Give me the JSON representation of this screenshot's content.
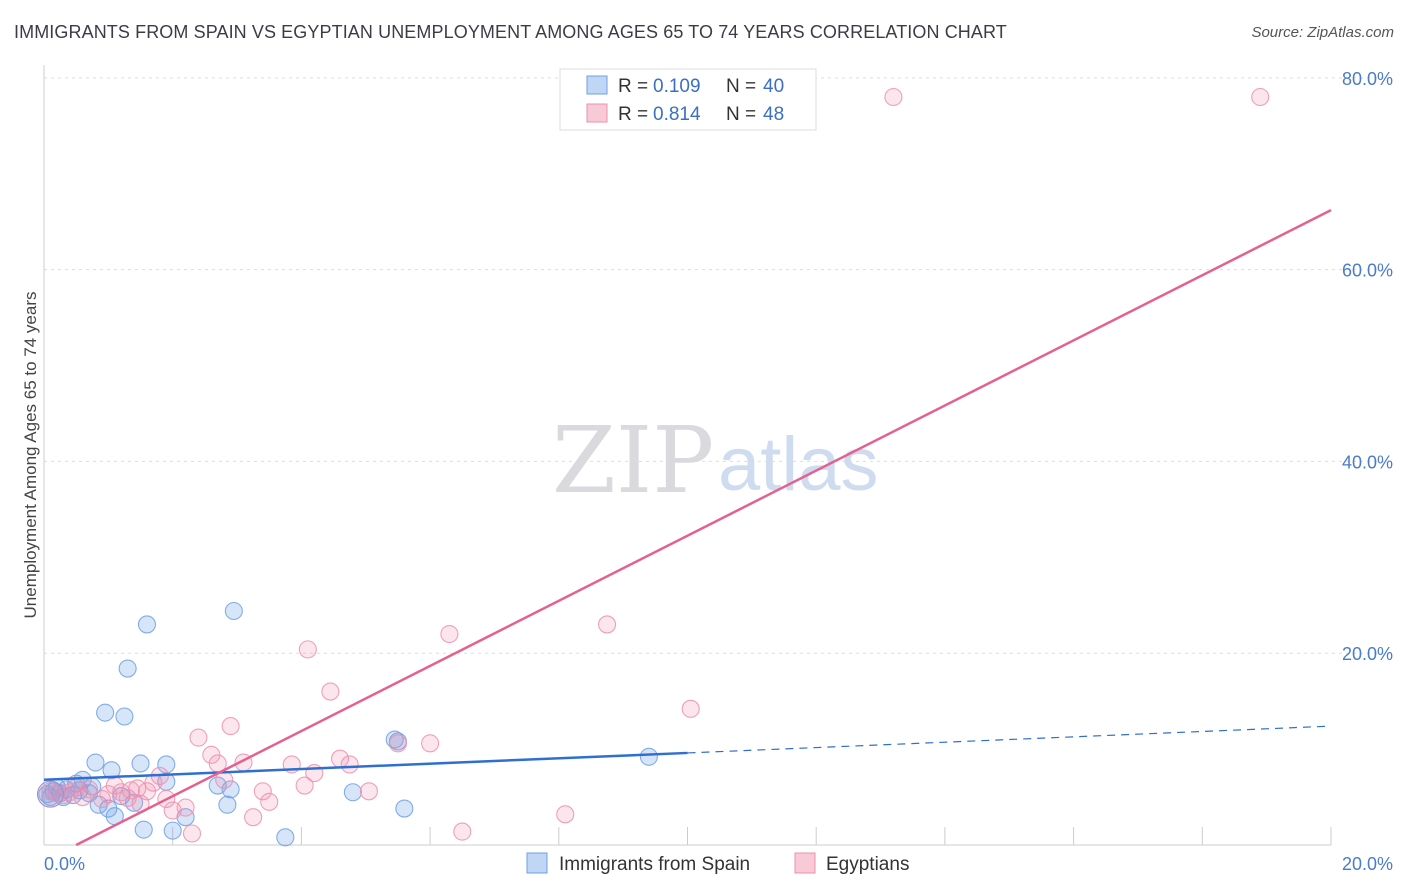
{
  "header": {
    "title": "IMMIGRANTS FROM SPAIN VS EGYPTIAN UNEMPLOYMENT AMONG AGES 65 TO 74 YEARS CORRELATION CHART",
    "source": "Source: ZipAtlas.com"
  },
  "watermark": {
    "zip": "ZIP",
    "atlas": "atlas"
  },
  "legend": {
    "rows": [
      {
        "r_label": "R =",
        "r_value": "0.109",
        "n_label": "N =",
        "n_value": "40",
        "color": "#a9c8f2"
      },
      {
        "r_label": "R =",
        "r_value": "0.814",
        "n_label": "N =",
        "n_value": "48",
        "color": "#f6b8cb"
      }
    ]
  },
  "bottom_legend": {
    "items": [
      {
        "label": "Immigrants from Spain",
        "color": "#a9c8f2"
      },
      {
        "label": "Egyptians",
        "color": "#f6b8cb"
      }
    ]
  },
  "chart_data": {
    "type": "scatter",
    "title": "IMMIGRANTS FROM SPAIN VS EGYPTIAN UNEMPLOYMENT AMONG AGES 65 TO 74 YEARS CORRELATION CHART",
    "xlabel": "",
    "ylabel": "Unemployment Among Ages 65 to 74 years",
    "xlim": [
      0,
      20
    ],
    "ylim": [
      0,
      80
    ],
    "x_tick_labels": [
      "0.0%",
      "20.0%"
    ],
    "y_ticks": [
      20,
      40,
      60,
      80
    ],
    "y_tick_labels": [
      "20.0%",
      "40.0%",
      "60.0%",
      "80.0%"
    ],
    "grid": true,
    "series": [
      {
        "name": "Immigrants from Spain",
        "color": "#6fa0e6",
        "line_color": "#2f6fd1",
        "points": [
          [
            0.1,
            5.0
          ],
          [
            0.15,
            5.6
          ],
          [
            0.25,
            5.4
          ],
          [
            0.35,
            5.8
          ],
          [
            0.45,
            5.2
          ],
          [
            0.5,
            6.4
          ],
          [
            0.6,
            6.8
          ],
          [
            0.7,
            5.4
          ],
          [
            0.75,
            6.1
          ],
          [
            0.8,
            8.6
          ],
          [
            0.85,
            4.2
          ],
          [
            0.95,
            13.8
          ],
          [
            1.0,
            3.8
          ],
          [
            1.05,
            7.8
          ],
          [
            1.1,
            3.0
          ],
          [
            1.25,
            13.4
          ],
          [
            1.3,
            18.4
          ],
          [
            1.4,
            4.4
          ],
          [
            1.5,
            8.5
          ],
          [
            1.55,
            1.6
          ],
          [
            1.6,
            23.0
          ],
          [
            1.9,
            6.6
          ],
          [
            1.9,
            8.4
          ],
          [
            2.0,
            1.5
          ],
          [
            2.2,
            2.9
          ],
          [
            2.7,
            6.2
          ],
          [
            2.85,
            4.2
          ],
          [
            2.9,
            5.8
          ],
          [
            2.95,
            24.4
          ],
          [
            3.75,
            0.8
          ],
          [
            4.8,
            5.5
          ],
          [
            5.45,
            11.0
          ],
          [
            5.5,
            10.8
          ],
          [
            5.6,
            3.8
          ],
          [
            9.4,
            9.2
          ],
          [
            0.05,
            5.3
          ],
          [
            0.3,
            5.0
          ],
          [
            0.55,
            5.7
          ],
          [
            1.2,
            5.1
          ],
          [
            0.2,
            6.0
          ]
        ],
        "trend": {
          "x_start": 0,
          "y_start": 6.8,
          "x_solid_end": 10,
          "y_solid_end": 9.6,
          "x_end": 20,
          "y_end": 12.4
        }
      },
      {
        "name": "Egyptians",
        "color": "#f08fae",
        "line_color": "#e5608f",
        "points": [
          [
            0.1,
            5.6
          ],
          [
            0.3,
            5.2
          ],
          [
            0.5,
            6.0
          ],
          [
            0.7,
            5.8
          ],
          [
            0.9,
            4.8
          ],
          [
            1.1,
            6.2
          ],
          [
            1.2,
            5.5
          ],
          [
            1.3,
            4.9
          ],
          [
            1.45,
            5.9
          ],
          [
            1.5,
            4.3
          ],
          [
            1.6,
            5.6
          ],
          [
            1.7,
            6.5
          ],
          [
            1.8,
            7.2
          ],
          [
            1.9,
            4.8
          ],
          [
            2.0,
            3.6
          ],
          [
            2.2,
            3.9
          ],
          [
            2.3,
            1.2
          ],
          [
            2.4,
            11.2
          ],
          [
            2.6,
            9.4
          ],
          [
            2.7,
            8.5
          ],
          [
            2.8,
            6.8
          ],
          [
            2.9,
            12.4
          ],
          [
            3.1,
            8.6
          ],
          [
            3.25,
            2.9
          ],
          [
            3.4,
            5.6
          ],
          [
            3.5,
            4.5
          ],
          [
            3.85,
            8.4
          ],
          [
            4.05,
            6.2
          ],
          [
            4.1,
            20.4
          ],
          [
            4.2,
            7.5
          ],
          [
            4.45,
            16.0
          ],
          [
            4.6,
            9.0
          ],
          [
            4.75,
            8.4
          ],
          [
            5.05,
            5.6
          ],
          [
            5.5,
            10.6
          ],
          [
            6.0,
            10.6
          ],
          [
            6.3,
            22.0
          ],
          [
            6.5,
            1.4
          ],
          [
            8.1,
            3.2
          ],
          [
            8.75,
            23.0
          ],
          [
            10.05,
            14.2
          ],
          [
            13.2,
            78.0
          ],
          [
            18.9,
            78.0
          ],
          [
            0.2,
            5.4
          ],
          [
            0.6,
            5.0
          ],
          [
            1.0,
            5.3
          ],
          [
            1.35,
            5.7
          ],
          [
            0.4,
            5.5
          ]
        ],
        "trend": {
          "x_start": 0.5,
          "y_start": 0.0,
          "x_end": 20,
          "y_end": 66.2
        }
      }
    ]
  }
}
